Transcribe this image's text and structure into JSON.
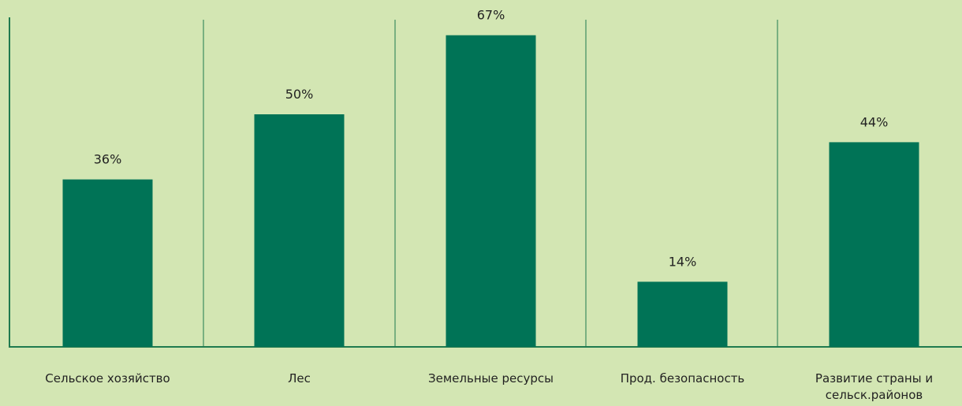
{
  "chart_data": {
    "type": "bar",
    "categories": [
      "Сельское хозяйство",
      "Лес",
      "Земельные ресурсы",
      "Прод. безопасность",
      "Развитие страны и сельск.районов"
    ],
    "values": [
      36,
      50,
      67,
      14,
      44
    ],
    "value_labels": [
      "36%",
      "50%",
      "67%",
      "14%",
      "44%"
    ],
    "color": "#007356",
    "ylim": [
      0,
      70
    ]
  }
}
